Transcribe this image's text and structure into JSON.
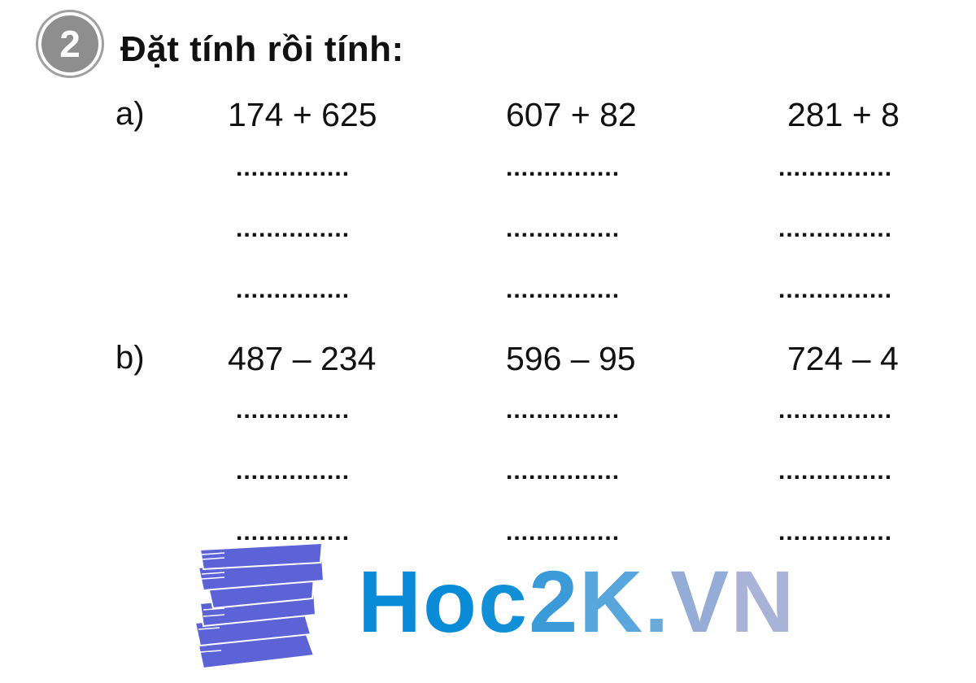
{
  "exercise": {
    "number": "2",
    "title": "Đặt tính rồi tính:",
    "answer_line": "...............",
    "parts": [
      {
        "label": "a)",
        "problems": [
          "174 + 625",
          "607 + 82",
          "281 + 8"
        ]
      },
      {
        "label": "b)",
        "problems": [
          "487 – 234",
          "596 – 95",
          "724 – 4"
        ]
      }
    ]
  },
  "logo": {
    "text": "Hoc2K.VN",
    "letters": [
      "H",
      "o",
      "c",
      "2",
      "K",
      ".",
      "V",
      "N"
    ],
    "colors": [
      "#0a8bd8",
      "#0a8bd8",
      "#1190d8",
      "#3b9bd9",
      "#58a6dc",
      "#6aaad8",
      "#94acd6",
      "#a9b3d8"
    ],
    "books_color": "#5b63d6",
    "icon": "book-stack-icon"
  }
}
